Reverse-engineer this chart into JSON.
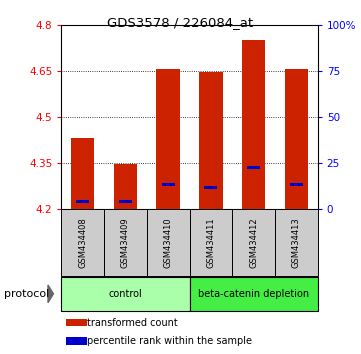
{
  "title": "GDS3578 / 226084_at",
  "samples": [
    "GSM434408",
    "GSM434409",
    "GSM434410",
    "GSM434411",
    "GSM434412",
    "GSM434413"
  ],
  "baseline": 4.2,
  "red_tops": [
    4.43,
    4.345,
    4.655,
    4.645,
    4.75,
    4.655
  ],
  "blue_vals": [
    4.225,
    4.225,
    4.28,
    4.27,
    4.335,
    4.28
  ],
  "ylim": [
    4.2,
    4.8
  ],
  "yticks_left": [
    4.2,
    4.35,
    4.5,
    4.65,
    4.8
  ],
  "yticks_right": [
    0,
    25,
    50,
    75,
    100
  ],
  "yticklabels_right": [
    "0",
    "25",
    "50",
    "75",
    "100%"
  ],
  "bar_width": 0.55,
  "bar_color_red": "#cc2200",
  "bar_color_blue": "#0000cc",
  "bg_color": "#ffffff",
  "sample_bg": "#cccccc",
  "control_color": "#aaffaa",
  "depletion_color": "#44ee44",
  "legend_red_label": "transformed count",
  "legend_blue_label": "percentile rank within the sample",
  "protocol_label": "protocol",
  "figsize": [
    3.61,
    3.54
  ],
  "dpi": 100
}
